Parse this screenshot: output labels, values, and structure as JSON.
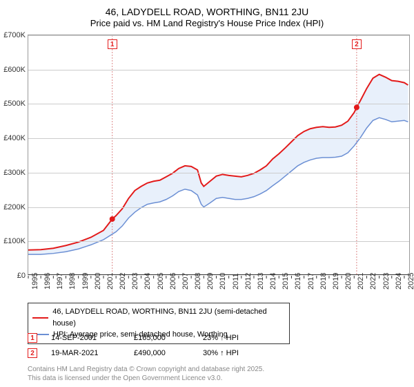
{
  "title": "46, LADYDELL ROAD, WORTHING, BN11 2JU",
  "subtitle": "Price paid vs. HM Land Registry's House Price Index (HPI)",
  "chart": {
    "type": "line",
    "background_color": "#ffffff",
    "fill_color": "#e8f0fb",
    "grid_color": "#cccccc",
    "border_color": "#999999",
    "axis_color": "#333333",
    "ylim": [
      0,
      700000
    ],
    "ytick_step": 100000,
    "y_ticks": [
      "£0",
      "£100K",
      "£200K",
      "£300K",
      "£400K",
      "£500K",
      "£600K",
      "£700K"
    ],
    "xlim": [
      1995,
      2025.5
    ],
    "x_ticks": [
      1995,
      1996,
      1997,
      1998,
      1999,
      2000,
      2001,
      2002,
      2003,
      2004,
      2005,
      2006,
      2007,
      2008,
      2009,
      2010,
      2011,
      2012,
      2013,
      2014,
      2015,
      2016,
      2017,
      2018,
      2019,
      2020,
      2021,
      2022,
      2023,
      2024,
      2025
    ],
    "label_fontsize": 11,
    "series": [
      {
        "name": "price_paid",
        "color": "#e31a1a",
        "width": 2,
        "points": [
          [
            1995,
            75000
          ],
          [
            1996,
            76000
          ],
          [
            1997,
            80000
          ],
          [
            1998,
            88000
          ],
          [
            1999,
            98000
          ],
          [
            2000,
            112000
          ],
          [
            2001,
            132000
          ],
          [
            2001.7,
            165000
          ],
          [
            2002,
            175000
          ],
          [
            2002.5,
            195000
          ],
          [
            2003,
            225000
          ],
          [
            2003.5,
            248000
          ],
          [
            2004,
            260000
          ],
          [
            2004.5,
            270000
          ],
          [
            2005,
            275000
          ],
          [
            2005.5,
            278000
          ],
          [
            2006,
            288000
          ],
          [
            2006.5,
            298000
          ],
          [
            2007,
            312000
          ],
          [
            2007.5,
            320000
          ],
          [
            2008,
            318000
          ],
          [
            2008.5,
            308000
          ],
          [
            2008.8,
            270000
          ],
          [
            2009,
            260000
          ],
          [
            2009.5,
            275000
          ],
          [
            2010,
            290000
          ],
          [
            2010.5,
            295000
          ],
          [
            2011,
            292000
          ],
          [
            2011.5,
            290000
          ],
          [
            2012,
            288000
          ],
          [
            2012.5,
            292000
          ],
          [
            2013,
            298000
          ],
          [
            2013.5,
            308000
          ],
          [
            2014,
            320000
          ],
          [
            2014.5,
            340000
          ],
          [
            2015,
            355000
          ],
          [
            2015.5,
            372000
          ],
          [
            2016,
            390000
          ],
          [
            2016.5,
            408000
          ],
          [
            2017,
            420000
          ],
          [
            2017.5,
            428000
          ],
          [
            2018,
            432000
          ],
          [
            2018.5,
            434000
          ],
          [
            2019,
            432000
          ],
          [
            2019.5,
            433000
          ],
          [
            2020,
            438000
          ],
          [
            2020.5,
            450000
          ],
          [
            2021,
            475000
          ],
          [
            2021.2,
            490000
          ],
          [
            2021.5,
            510000
          ],
          [
            2022,
            545000
          ],
          [
            2022.5,
            575000
          ],
          [
            2023,
            586000
          ],
          [
            2023.5,
            578000
          ],
          [
            2024,
            568000
          ],
          [
            2024.5,
            566000
          ],
          [
            2025,
            562000
          ],
          [
            2025.3,
            555000
          ]
        ]
      },
      {
        "name": "hpi",
        "color": "#6b8fd4",
        "width": 1.5,
        "points": [
          [
            1995,
            62000
          ],
          [
            1996,
            62000
          ],
          [
            1997,
            65000
          ],
          [
            1998,
            70000
          ],
          [
            1999,
            78000
          ],
          [
            2000,
            90000
          ],
          [
            2001,
            105000
          ],
          [
            2002,
            128000
          ],
          [
            2002.5,
            145000
          ],
          [
            2003,
            168000
          ],
          [
            2003.5,
            185000
          ],
          [
            2004,
            198000
          ],
          [
            2004.5,
            208000
          ],
          [
            2005,
            212000
          ],
          [
            2005.5,
            215000
          ],
          [
            2006,
            222000
          ],
          [
            2006.5,
            232000
          ],
          [
            2007,
            245000
          ],
          [
            2007.5,
            252000
          ],
          [
            2008,
            248000
          ],
          [
            2008.5,
            235000
          ],
          [
            2008.8,
            208000
          ],
          [
            2009,
            200000
          ],
          [
            2009.5,
            212000
          ],
          [
            2010,
            225000
          ],
          [
            2010.5,
            228000
          ],
          [
            2011,
            225000
          ],
          [
            2011.5,
            222000
          ],
          [
            2012,
            222000
          ],
          [
            2012.5,
            225000
          ],
          [
            2013,
            230000
          ],
          [
            2013.5,
            238000
          ],
          [
            2014,
            248000
          ],
          [
            2014.5,
            262000
          ],
          [
            2015,
            275000
          ],
          [
            2015.5,
            290000
          ],
          [
            2016,
            305000
          ],
          [
            2016.5,
            320000
          ],
          [
            2017,
            330000
          ],
          [
            2017.5,
            337000
          ],
          [
            2018,
            342000
          ],
          [
            2018.5,
            344000
          ],
          [
            2019,
            344000
          ],
          [
            2019.5,
            345000
          ],
          [
            2020,
            348000
          ],
          [
            2020.5,
            358000
          ],
          [
            2021,
            378000
          ],
          [
            2021.5,
            402000
          ],
          [
            2022,
            430000
          ],
          [
            2022.5,
            452000
          ],
          [
            2023,
            460000
          ],
          [
            2023.5,
            455000
          ],
          [
            2024,
            448000
          ],
          [
            2024.5,
            450000
          ],
          [
            2025,
            452000
          ],
          [
            2025.3,
            448000
          ]
        ]
      }
    ],
    "markers": [
      {
        "x": 2001.7,
        "y": 165000,
        "ref": "1"
      },
      {
        "x": 2021.2,
        "y": 490000,
        "ref": "2"
      }
    ],
    "ref_lines": [
      {
        "x": 2001.7,
        "label": "1"
      },
      {
        "x": 2021.2,
        "label": "2"
      }
    ]
  },
  "legend": {
    "items": [
      {
        "color": "#e31a1a",
        "label": "46, LADYDELL ROAD, WORTHING, BN11 2JU (semi-detached house)"
      },
      {
        "color": "#6b8fd4",
        "label": "HPI: Average price, semi-detached house, Worthing"
      }
    ]
  },
  "sales": [
    {
      "ref": "1",
      "date": "14-SEP-2001",
      "price": "£165,000",
      "diff": "23% ↑ HPI"
    },
    {
      "ref": "2",
      "date": "19-MAR-2021",
      "price": "£490,000",
      "diff": "30% ↑ HPI"
    }
  ],
  "attribution": {
    "line1": "Contains HM Land Registry data © Crown copyright and database right 2025.",
    "line2": "This data is licensed under the Open Government Licence v3.0."
  }
}
